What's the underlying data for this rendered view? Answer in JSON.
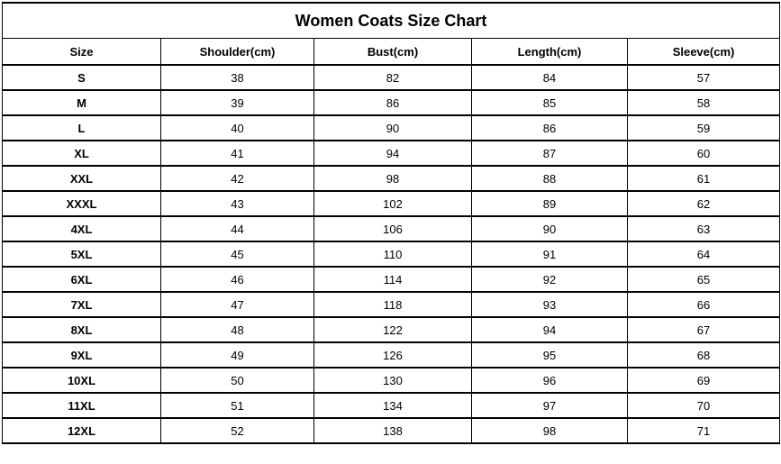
{
  "title": "Women Coats Size Chart",
  "chart_data": {
    "type": "table",
    "title": "Women Coats Size Chart",
    "columns": [
      "Size",
      "Shoulder(cm)",
      "Bust(cm)",
      "Length(cm)",
      "Sleeve(cm)"
    ],
    "rows": [
      [
        "S",
        "38",
        "82",
        "84",
        "57"
      ],
      [
        "M",
        "39",
        "86",
        "85",
        "58"
      ],
      [
        "L",
        "40",
        "90",
        "86",
        "59"
      ],
      [
        "XL",
        "41",
        "94",
        "87",
        "60"
      ],
      [
        "XXL",
        "42",
        "98",
        "88",
        "61"
      ],
      [
        "XXXL",
        "43",
        "102",
        "89",
        "62"
      ],
      [
        "4XL",
        "44",
        "106",
        "90",
        "63"
      ],
      [
        "5XL",
        "45",
        "110",
        "91",
        "64"
      ],
      [
        "6XL",
        "46",
        "114",
        "92",
        "65"
      ],
      [
        "7XL",
        "47",
        "118",
        "93",
        "66"
      ],
      [
        "8XL",
        "48",
        "122",
        "94",
        "67"
      ],
      [
        "9XL",
        "49",
        "126",
        "95",
        "68"
      ],
      [
        "10XL",
        "50",
        "130",
        "96",
        "69"
      ],
      [
        "11XL",
        "51",
        "134",
        "97",
        "70"
      ],
      [
        "12XL",
        "52",
        "138",
        "98",
        "71"
      ]
    ],
    "unit": "cm",
    "text_color": "#000000",
    "border_color": "#000000",
    "background_color": "#ffffff"
  }
}
